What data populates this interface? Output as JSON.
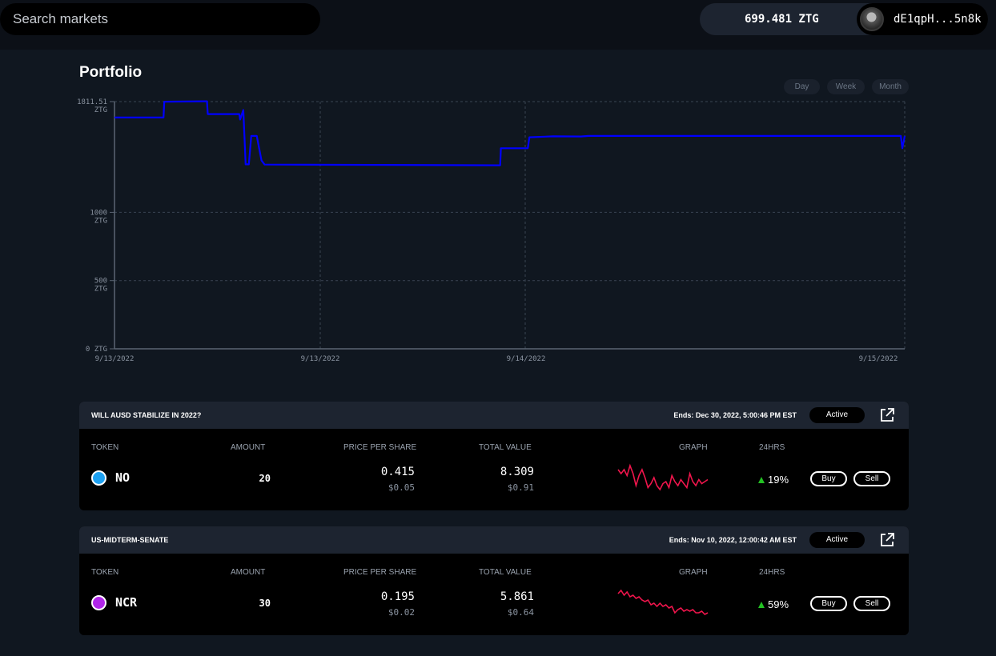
{
  "header": {
    "search_placeholder": "Search markets",
    "balance": "699.481 ZTG",
    "address": "dE1qpH...5n8k"
  },
  "portfolio": {
    "title": "Portfolio",
    "ranges": [
      {
        "label": "Day",
        "active": false
      },
      {
        "label": "Week",
        "active": true
      },
      {
        "label": "Month",
        "active": false
      }
    ],
    "colors": {
      "line": "#0000ff",
      "grid": "#3a4452",
      "axis_text": "#8a93a0"
    }
  },
  "chart_data": {
    "type": "line",
    "title": "",
    "xlabel": "",
    "ylabel": "",
    "y_tick_labels": [
      {
        "value": 1811.51,
        "lines": [
          "1811.51",
          "ZTG"
        ]
      },
      {
        "value": 1000,
        "lines": [
          "1000",
          "ZTG"
        ]
      },
      {
        "value": 500,
        "lines": [
          "500",
          "ZTG"
        ]
      },
      {
        "value": 0,
        "lines": [
          "0 ZTG"
        ]
      }
    ],
    "x_tick_labels": [
      "9/13/2022",
      "9/13/2022",
      "9/14/2022",
      "9/15/2022"
    ],
    "ylim": [
      0,
      1811.51
    ],
    "grid": true,
    "series": [
      {
        "x": [
          0,
          0.062,
          0.063,
          0.117,
          0.118,
          0.158,
          0.159,
          0.163,
          0.166,
          0.17,
          0.173,
          0.18,
          0.186,
          0.19,
          0.488,
          0.489,
          0.523,
          0.525,
          0.545,
          0.555,
          0.59,
          0.6,
          0.8,
          0.995,
          0.997,
          1.0
        ],
        "y": [
          1695,
          1695,
          1811,
          1814,
          1720,
          1720,
          1680,
          1750,
          1352,
          1352,
          1560,
          1560,
          1380,
          1350,
          1345,
          1470,
          1470,
          1550,
          1555,
          1557,
          1556,
          1560,
          1560,
          1560,
          1470,
          1560
        ]
      }
    ]
  },
  "markets": [
    {
      "name": "WILL AUSD STABILIZE IN 2022?",
      "ends": "Ends: Dec 30, 2022, 5:00:46 PM EST",
      "status": "Active",
      "headers": {
        "token": "TOKEN",
        "amount": "AMOUNT",
        "price": "PRICE PER SHARE",
        "total": "TOTAL VALUE",
        "graph": "GRAPH",
        "change": "24HRS"
      },
      "token": "NO",
      "token_color": "#1da1f2",
      "amount": "20",
      "price": "0.415",
      "price_usd": "$0.05",
      "total": "8.309",
      "total_usd": "$0.91",
      "change": "19%",
      "sparkline": [
        6,
        8,
        6,
        9,
        4,
        8,
        14,
        9,
        6,
        10,
        15,
        13,
        10,
        14,
        16,
        13,
        12,
        15,
        9,
        12,
        14,
        11,
        13,
        15,
        8,
        12,
        14,
        11,
        13,
        12,
        11
      ],
      "buy_label": "Buy",
      "sell_label": "Sell"
    },
    {
      "name": "US-MIDTERM-SENATE",
      "ends": "Ends: Nov 10, 2022, 12:00:42 AM EST",
      "status": "Active",
      "headers": {
        "token": "TOKEN",
        "amount": "AMOUNT",
        "price": "PRICE PER SHARE",
        "total": "TOTAL VALUE",
        "graph": "GRAPH",
        "change": "24HRS"
      },
      "token": "NCR",
      "token_color": "#b026e8",
      "amount": "30",
      "price": "0.195",
      "price_usd": "$0.02",
      "total": "5.861",
      "total_usd": "$0.64",
      "change": "59%",
      "sparkline": [
        4,
        2,
        5,
        3,
        6,
        5,
        7,
        6,
        8,
        9,
        8,
        11,
        10,
        12,
        10,
        12,
        11,
        13,
        12,
        16,
        14,
        13,
        15,
        14,
        15,
        14,
        16,
        16,
        15,
        17,
        16
      ],
      "buy_label": "Buy",
      "sell_label": "Sell"
    }
  ]
}
